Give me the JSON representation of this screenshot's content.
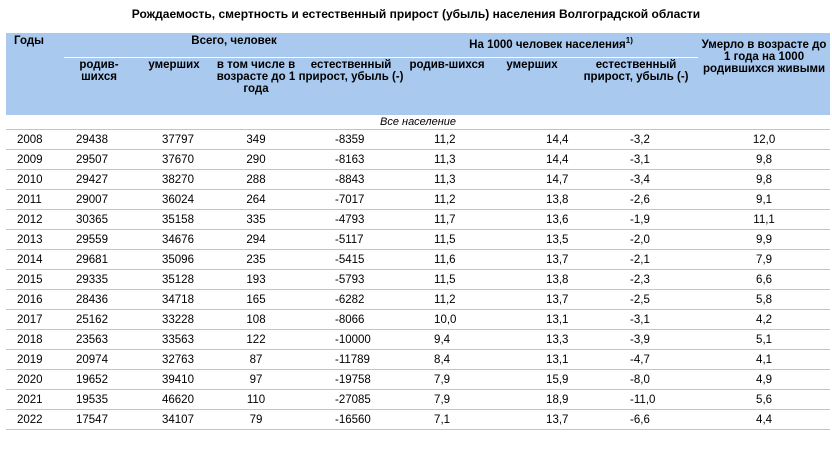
{
  "title": "Рождаемость, смертность и естественный прирост (убыль) населения Волгоградской области",
  "header": {
    "years": "Годы",
    "total_group": "Всего, человек",
    "per1000_group": "На 1000 человек населения",
    "per1000_footnote": "1)",
    "infant_per1000": "Умерло в возрасте до 1 года на 1000 родившихся живыми",
    "born": "родив-шихся",
    "died": "умерших",
    "infant": "в том числе в возрасте до 1 года",
    "natural": "естественный прирост, убыль (-)",
    "born_rate": "родив-шихся",
    "died_rate": "умерших",
    "natural_rate": "естественный прирост, убыль (-)"
  },
  "section_label": "Все население",
  "rows": [
    [
      "2008",
      "29438",
      "37797",
      "349",
      "-8359",
      "11,2",
      "14,4",
      "-3,2",
      "12,0"
    ],
    [
      "2009",
      "29507",
      "37670",
      "290",
      "-8163",
      "11,3",
      "14,4",
      "-3,1",
      "9,8"
    ],
    [
      "2010",
      "29427",
      "38270",
      "288",
      "-8843",
      "11,3",
      "14,7",
      "-3,4",
      "9,8"
    ],
    [
      "2011",
      "29007",
      "36024",
      "264",
      "-7017",
      "11,2",
      "13,8",
      "-2,6",
      "9,1"
    ],
    [
      "2012",
      "30365",
      "35158",
      "335",
      "-4793",
      "11,7",
      "13,6",
      "-1,9",
      "11,1"
    ],
    [
      "2013",
      "29559",
      "34676",
      "294",
      "-5117",
      "11,5",
      "13,5",
      "-2,0",
      "9,9"
    ],
    [
      "2014",
      "29681",
      "35096",
      "235",
      "-5415",
      "11,6",
      "13,7",
      "-2,1",
      "7,9"
    ],
    [
      "2015",
      "29335",
      "35128",
      "193",
      "-5793",
      "11,5",
      "13,8",
      "-2,3",
      "6,6"
    ],
    [
      "2016",
      "28436",
      "34718",
      "165",
      "-6282",
      "11,2",
      "13,7",
      "-2,5",
      "5,8"
    ],
    [
      "2017",
      "25162",
      "33228",
      "108",
      "-8066",
      "10,0",
      "13,1",
      "-3,1",
      "4,2"
    ],
    [
      "2018",
      "23563",
      "33563",
      "122",
      "-10000",
      "9,4",
      "13,3",
      "-3,9",
      "5,1"
    ],
    [
      "2019",
      "20974",
      "32763",
      "87",
      "-11789",
      "8,4",
      "13,1",
      "-4,7",
      "4,1"
    ],
    [
      "2020",
      "19652",
      "39410",
      "97",
      "-19758",
      "7,9",
      "15,9",
      "-8,0",
      "4,9"
    ],
    [
      "2021",
      "19535",
      "46620",
      "110",
      "-27085",
      "7,9",
      "18,9",
      "-11,0",
      "5,6"
    ],
    [
      "2022",
      "17547",
      "34107",
      "79",
      "-16560",
      "7,1",
      "13,7",
      "-6,6",
      "4,4"
    ]
  ]
}
